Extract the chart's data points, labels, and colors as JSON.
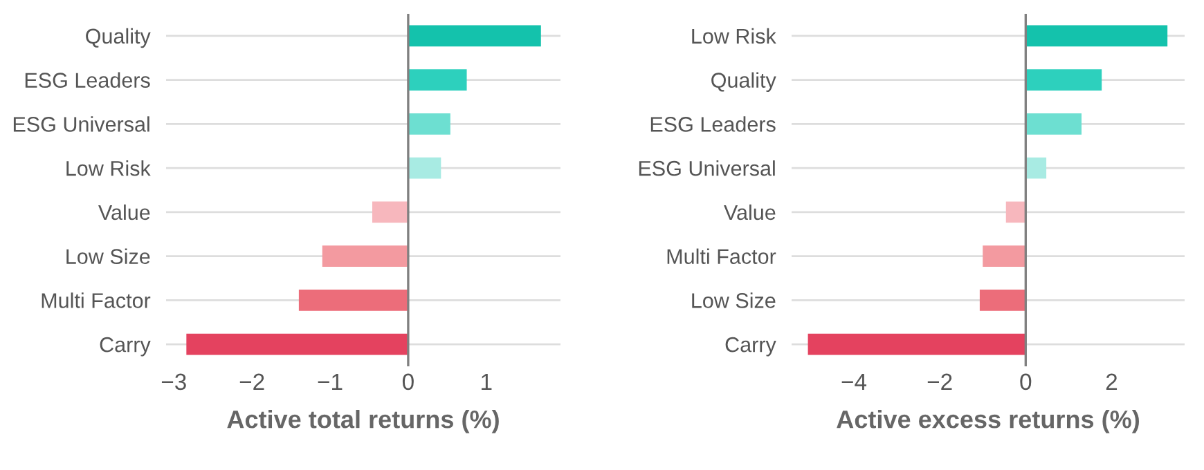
{
  "chart_data": [
    {
      "type": "bar",
      "orientation": "horizontal",
      "xlabel": "Active total returns (%)",
      "categories": [
        "Quality",
        "ESG Leaders",
        "ESG Universal",
        "Low Risk",
        "Value",
        "Low Size",
        "Multi Factor",
        "Carry"
      ],
      "values": [
        1.7,
        0.75,
        0.54,
        0.42,
        -0.46,
        -1.1,
        -1.4,
        -2.84
      ],
      "colors": [
        "#14c2ac",
        "#2dd0bd",
        "#6ddfd1",
        "#a8ebe3",
        "#f7b7bd",
        "#f39aa0",
        "#ec6d7a",
        "#e4425f"
      ],
      "xlim": [
        -3.1,
        1.95
      ],
      "xticks": [
        {
          "value": -3,
          "label": "−3"
        },
        {
          "value": -2,
          "label": "−2"
        },
        {
          "value": -1,
          "label": "−1"
        },
        0,
        1
      ],
      "grid": "y",
      "ref_lines": [
        {
          "axis": "x",
          "value": 0,
          "color": "#808080"
        }
      ]
    },
    {
      "type": "bar",
      "orientation": "horizontal",
      "xlabel": "Active excess returns (%)",
      "categories": [
        "Low Risk",
        "Quality",
        "ESG Leaders",
        "ESG Universal",
        "Value",
        "Multi Factor",
        "Low Size",
        "Carry"
      ],
      "values": [
        3.3,
        1.77,
        1.3,
        0.48,
        -0.46,
        -1.0,
        -1.07,
        -5.07
      ],
      "colors": [
        "#14c2ac",
        "#2dd0bd",
        "#6ddfd1",
        "#a8ebe3",
        "#f7b7bd",
        "#f39aa0",
        "#ec6d7a",
        "#e4425f"
      ],
      "xlim": [
        -5.45,
        3.7
      ],
      "xticks": [
        {
          "value": -4,
          "label": "−4"
        },
        {
          "value": -2,
          "label": "−2"
        },
        0,
        2
      ],
      "grid": "y",
      "ref_lines": [
        {
          "axis": "x",
          "value": 0,
          "color": "#808080"
        }
      ]
    }
  ]
}
